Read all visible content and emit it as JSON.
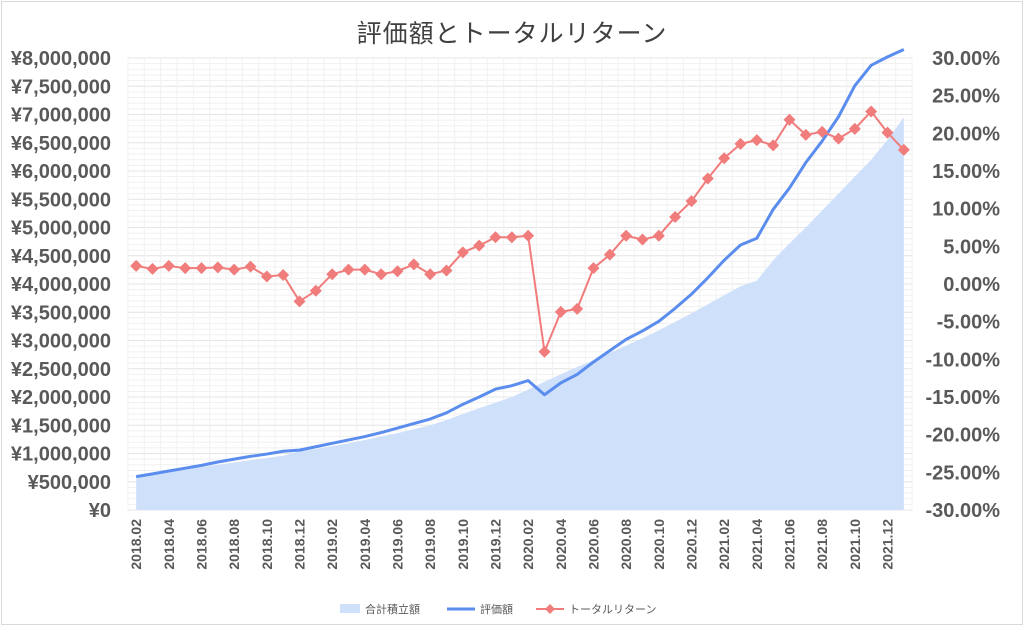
{
  "chart_data": {
    "type": "area+line",
    "title": "評価額とトータルリターン",
    "categories": [
      "2018.02",
      "2018.03",
      "2018.04",
      "2018.05",
      "2018.06",
      "2018.07",
      "2018.08",
      "2018.09",
      "2018.10",
      "2018.11",
      "2018.12",
      "2019.01",
      "2019.02",
      "2019.03",
      "2019.04",
      "2019.05",
      "2019.06",
      "2019.07",
      "2019.08",
      "2019.09",
      "2019.10",
      "2019.11",
      "2019.12",
      "2020.01",
      "2020.02",
      "2020.03",
      "2020.04",
      "2020.05",
      "2020.06",
      "2020.07",
      "2020.08",
      "2020.09",
      "2020.10",
      "2020.11",
      "2020.12",
      "2021.01",
      "2021.02",
      "2021.03",
      "2021.04",
      "2021.05",
      "2021.06",
      "2021.07",
      "2021.08",
      "2021.09",
      "2021.10",
      "2021.11",
      "2021.12",
      "2022.01"
    ],
    "x_tick_labels": [
      "2018.02",
      "2018.04",
      "2018.06",
      "2018.08",
      "2018.10",
      "2018.12",
      "2019.02",
      "2019.04",
      "2019.06",
      "2019.08",
      "2019.10",
      "2019.12",
      "2020.02",
      "2020.04",
      "2020.06",
      "2020.08",
      "2020.10",
      "2020.12",
      "2021.02",
      "2021.04",
      "2021.06",
      "2021.08",
      "2021.10",
      "2021.12"
    ],
    "y_left": {
      "min": 0,
      "max": 8000000,
      "step": 500000,
      "tick_labels": [
        "¥0",
        "¥500,000",
        "¥1,000,000",
        "¥1,500,000",
        "¥2,000,000",
        "¥2,500,000",
        "¥3,000,000",
        "¥3,500,000",
        "¥4,000,000",
        "¥4,500,000",
        "¥5,000,000",
        "¥5,500,000",
        "¥6,000,000",
        "¥6,500,000",
        "¥7,000,000",
        "¥7,500,000",
        "¥8,000,000"
      ]
    },
    "y_right": {
      "min": -0.3,
      "max": 0.3,
      "step": 0.05,
      "tick_labels": [
        "-30.00%",
        "-25.00%",
        "-20.00%",
        "-15.00%",
        "-10.00%",
        "-5.00%",
        "0.00%",
        "5.00%",
        "10.00%",
        "15.00%",
        "20.00%",
        "25.00%",
        "30.00%"
      ]
    },
    "grid": true,
    "legend_position": "bottom",
    "series": [
      {
        "name": "合計積立額",
        "type": "area",
        "axis": "left",
        "color": "#cfe0fb",
        "values": [
          600000,
          640000,
          680000,
          720000,
          760000,
          800000,
          840000,
          880000,
          920000,
          960000,
          1040000,
          1080000,
          1130000,
          1180000,
          1240000,
          1300000,
          1360000,
          1430000,
          1500000,
          1590000,
          1700000,
          1800000,
          1900000,
          2000000,
          2130000,
          2270000,
          2400000,
          2530000,
          2650000,
          2780000,
          2910000,
          3040000,
          3180000,
          3330000,
          3480000,
          3640000,
          3800000,
          3960000,
          4060000,
          4420000,
          4720000,
          5000000,
          5300000,
          5600000,
          5900000,
          6200000,
          6550000,
          6950000
        ]
      },
      {
        "name": "評価額",
        "type": "line",
        "axis": "left",
        "color": "#5b8def",
        "values": [
          590000,
          640000,
          690000,
          740000,
          790000,
          850000,
          900000,
          950000,
          990000,
          1040000,
          1060000,
          1120000,
          1180000,
          1240000,
          1300000,
          1370000,
          1450000,
          1530000,
          1610000,
          1720000,
          1870000,
          2000000,
          2140000,
          2200000,
          2290000,
          2040000,
          2250000,
          2400000,
          2620000,
          2820000,
          3020000,
          3170000,
          3340000,
          3570000,
          3820000,
          4110000,
          4420000,
          4690000,
          4810000,
          5320000,
          5700000,
          6150000,
          6530000,
          6960000,
          7510000,
          7870000,
          8020000,
          8150000
        ]
      },
      {
        "name": "トータルリターン",
        "type": "line",
        "axis": "right",
        "color": "#f07c7c",
        "marker": "diamond",
        "values": [
          0.024,
          0.02,
          0.024,
          0.021,
          0.021,
          0.022,
          0.019,
          0.023,
          0.01,
          0.012,
          -0.023,
          -0.009,
          0.013,
          0.019,
          0.019,
          0.013,
          0.017,
          0.026,
          0.013,
          0.018,
          0.042,
          0.051,
          0.062,
          0.062,
          0.064,
          -0.09,
          -0.037,
          -0.033,
          0.021,
          0.039,
          0.064,
          0.059,
          0.064,
          0.089,
          0.11,
          0.14,
          0.167,
          0.186,
          0.191,
          0.184,
          0.218,
          0.198,
          0.202,
          0.193,
          0.206,
          0.229,
          0.201,
          0.178
        ]
      }
    ]
  }
}
